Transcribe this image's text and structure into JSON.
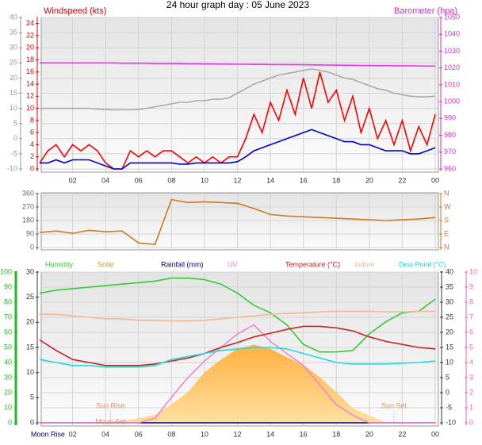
{
  "chart_data": [
    {
      "type": "line",
      "title": "24 hour graph day : 05 June 2023",
      "y_label": "Windspeed (kts)",
      "y2_label": "Barometer (hpa)",
      "xlim": [
        0,
        24
      ],
      "xticks": [
        {
          "value": 2,
          "label": "02"
        },
        {
          "value": 4,
          "label": "04"
        },
        {
          "value": 6,
          "label": "06"
        },
        {
          "value": 8,
          "label": "08"
        },
        {
          "value": 10,
          "label": "10"
        },
        12,
        14,
        16,
        18,
        20,
        22,
        {
          "value": 24,
          "label": "00"
        }
      ],
      "x": [
        0,
        0.5,
        1,
        1.5,
        2,
        2.5,
        3,
        3.5,
        4,
        4.5,
        5,
        5.5,
        6,
        6.5,
        7,
        7.5,
        8,
        8.5,
        9,
        9.5,
        10,
        10.5,
        11,
        11.5,
        12,
        12.5,
        13,
        13.5,
        14,
        14.5,
        15,
        15.5,
        16,
        16.5,
        17,
        17.5,
        18,
        18.5,
        19,
        19.5,
        20,
        20.5,
        21,
        21.5,
        22,
        22.5,
        23,
        23.5,
        24
      ],
      "ylim": [
        0,
        25
      ],
      "yticks": [
        24,
        22,
        20,
        18,
        16,
        14,
        12,
        10,
        8,
        6,
        4,
        2,
        0
      ],
      "y2lim": [
        960,
        1050
      ],
      "y2ticks": [
        1050,
        1040,
        1030,
        1020,
        1010,
        1000,
        990,
        980,
        970,
        960
      ],
      "y3lim": [
        -10,
        40
      ],
      "y3ticks": [
        40,
        35,
        30,
        25,
        20,
        15,
        10,
        5,
        0,
        -5,
        -10
      ],
      "axis_colors": {
        "y": "#dd0000",
        "y2": "#cc33cc",
        "y3": "#999999"
      },
      "grid": "y3",
      "series": [
        {
          "color": "#aaaaaa",
          "axis": "y3",
          "values": [
            10,
            10,
            10,
            10,
            10,
            10,
            10,
            9.8,
            9.6,
            9.5,
            9.5,
            9.5,
            9.6,
            10,
            10.5,
            11,
            11.5,
            12,
            12,
            12.5,
            12.5,
            13,
            13,
            13.5,
            15,
            16.5,
            18,
            19,
            20,
            21,
            21.5,
            22,
            22.5,
            23,
            22.5,
            22,
            21,
            20,
            19.5,
            18.5,
            17.5,
            16.5,
            16,
            15,
            14.5,
            14,
            13.8,
            13.8,
            14
          ]
        },
        {
          "color": "#ee33ee",
          "axis": "y2",
          "values": [
            1023,
            1023,
            1023,
            1023,
            1023,
            1023,
            1023,
            1023,
            1023,
            1023,
            1022.8,
            1022.8,
            1022.8,
            1022.8,
            1022.6,
            1022.6,
            1022.6,
            1022.6,
            1022.5,
            1022.5,
            1022.4,
            1022.4,
            1022.3,
            1022.3,
            1022.2,
            1022.2,
            1022.1,
            1022.1,
            1022,
            1022,
            1022,
            1021.9,
            1021.9,
            1021.8,
            1021.8,
            1021.7,
            1021.7,
            1021.6,
            1021.6,
            1021.5,
            1021.5,
            1021.4,
            1021.4,
            1021.3,
            1021.3,
            1021.2,
            1021.2,
            1021.1,
            1021.1
          ]
        },
        {
          "color": "#ff0000",
          "axis": "y",
          "values": [
            1,
            3,
            4,
            2,
            4,
            3,
            4,
            3,
            1,
            0,
            0,
            3,
            2,
            3,
            2,
            3,
            3,
            2,
            1,
            2,
            1,
            2,
            1,
            2,
            2,
            5,
            9,
            6,
            11,
            8,
            13,
            9,
            15,
            10,
            16,
            11,
            13,
            8,
            12,
            6,
            10,
            5,
            8,
            4,
            8,
            3,
            7,
            4,
            9
          ]
        },
        {
          "color": "#0000cc",
          "axis": "y",
          "values": [
            1,
            1,
            1.5,
            1,
            1.5,
            1.5,
            1.5,
            1,
            0.5,
            0,
            0,
            1,
            1,
            1,
            1,
            1,
            1,
            0.8,
            0.8,
            1,
            1,
            1,
            1,
            1,
            1.2,
            2,
            3,
            3.5,
            4,
            4.5,
            5,
            5.5,
            6,
            6.5,
            6,
            5.5,
            5,
            4.5,
            4.5,
            4,
            4,
            3.5,
            3,
            3,
            3,
            2.5,
            2.5,
            3,
            3.5
          ]
        }
      ]
    },
    {
      "type": "line",
      "xlim": [
        0,
        24
      ],
      "x": [
        0,
        1,
        2,
        3,
        4,
        5,
        6,
        7,
        8,
        9,
        10,
        11,
        12,
        13,
        14,
        15,
        16,
        17,
        18,
        19,
        20,
        21,
        22,
        23,
        24
      ],
      "ylim": [
        0,
        360
      ],
      "yticks": [
        360,
        270,
        180,
        90,
        0
      ],
      "y2lim": [
        0,
        360
      ],
      "y2ticks": [
        {
          "value": 360,
          "label": "N"
        },
        {
          "value": 270,
          "label": "W"
        },
        {
          "value": 180,
          "label": "S"
        },
        {
          "value": 90,
          "label": "E"
        },
        {
          "value": 0,
          "label": "N"
        }
      ],
      "axis_colors": {
        "y": "#666666",
        "y2": "#cc7a20"
      },
      "grid": "y",
      "series": [
        {
          "color": "#d07a20",
          "axis": "y",
          "values": [
            100,
            110,
            95,
            115,
            105,
            110,
            30,
            20,
            320,
            300,
            305,
            300,
            295,
            260,
            220,
            210,
            205,
            200,
            195,
            190,
            185,
            180,
            185,
            190,
            200
          ]
        }
      ]
    },
    {
      "type": "line",
      "xlim": [
        0,
        24
      ],
      "xticks": [
        {
          "value": 2,
          "label": "02"
        },
        {
          "value": 4,
          "label": "04"
        },
        {
          "value": 6,
          "label": "06"
        },
        {
          "value": 8,
          "label": "08"
        },
        {
          "value": 10,
          "label": "10"
        },
        12,
        14,
        16,
        18,
        20,
        22,
        {
          "value": 24,
          "label": "00"
        }
      ],
      "x": [
        0,
        1,
        2,
        3,
        4,
        5,
        6,
        7,
        8,
        9,
        10,
        11,
        12,
        13,
        14,
        15,
        16,
        17,
        18,
        19,
        20,
        21,
        22,
        23,
        24
      ],
      "ylim": [
        0,
        100
      ],
      "yticks": [
        100,
        90,
        80,
        70,
        60,
        50,
        40,
        30,
        20,
        10,
        0
      ],
      "y2lim": [
        -10,
        40
      ],
      "y2ticks": [
        40,
        35,
        30,
        25,
        20,
        15,
        10,
        5,
        0,
        -5,
        -10
      ],
      "y3lim": [
        0,
        30
      ],
      "y3ticks": [
        30,
        25,
        20,
        15,
        10,
        5,
        0
      ],
      "y4lim": [
        0,
        10
      ],
      "y4ticks": [
        10,
        9,
        8,
        7,
        6,
        5,
        4,
        3,
        2,
        1,
        0
      ],
      "axis_colors": {
        "y": "#22bb22",
        "y2": "#333333",
        "y3": "#333333",
        "y4": "#ee66bb"
      },
      "grid": "y2",
      "annotations": [
        {
          "text": "Sun Rise",
          "x": 4.3
        },
        {
          "text": "Moon Set",
          "x": 4.3
        },
        {
          "text": "Sun Set",
          "x": 21.5
        },
        {
          "text": "Moon Rise",
          "x": 0.5
        }
      ],
      "series": [
        {
          "name": "Humidity",
          "color": "#33cc33",
          "axis": "y",
          "values": [
            86,
            88,
            89,
            90,
            91,
            92,
            93,
            94,
            96,
            96,
            95,
            92,
            86,
            78,
            73,
            65,
            52,
            47,
            47,
            48,
            59,
            67,
            73,
            74,
            82
          ]
        },
        {
          "name": "Solar",
          "color": "#ffbb44",
          "text_color": "#b8a030",
          "axis": "y3",
          "area": true,
          "values": [
            0,
            0,
            0,
            0,
            0,
            0.3,
            0.8,
            1.5,
            3.6,
            6,
            10,
            12.5,
            14.7,
            15.5,
            14.7,
            13,
            11.5,
            9,
            6,
            2.8,
            1.3,
            0,
            0,
            0,
            0
          ]
        },
        {
          "name": "Rainfall (mm)",
          "color": "#000080",
          "axis": "y3",
          "values": [
            0,
            0,
            0,
            0,
            0,
            0,
            0,
            0,
            0,
            0,
            0,
            0,
            0,
            0,
            0,
            0,
            0,
            0,
            0,
            0,
            0,
            0,
            0,
            0,
            0
          ]
        },
        {
          "name": "UV",
          "color": "#ee88cc",
          "axis": "y4",
          "values": [
            0,
            0,
            0,
            0,
            0,
            0,
            0,
            0.3,
            1.7,
            3,
            4.1,
            5,
            5.9,
            6.5,
            5.4,
            4.6,
            3.8,
            2.5,
            1.2,
            0.5,
            0,
            0,
            0,
            0,
            0
          ]
        },
        {
          "name": "Temperature (°C)",
          "color": "#cc2222",
          "axis": "y2",
          "values": [
            17.5,
            14,
            11,
            10,
            9,
            9,
            9,
            9.5,
            10.5,
            11.5,
            13,
            15,
            16.6,
            18.5,
            19.7,
            21,
            22,
            22,
            21.5,
            20.5,
            18.5,
            17,
            16,
            15,
            14.5
          ]
        },
        {
          "name": "Indoor",
          "color": "#f4b898",
          "axis": "y2",
          "values": [
            26,
            26,
            25.5,
            25,
            24.5,
            24.5,
            24,
            24,
            23.8,
            23.8,
            24,
            24.5,
            25,
            25.5,
            26,
            26.3,
            26.5,
            26.8,
            27,
            27,
            27,
            26.8,
            26.8,
            27,
            27
          ]
        },
        {
          "name": "Dew Point (°C)",
          "color": "#22dddd",
          "axis": "y2",
          "values": [
            11,
            10,
            9,
            9,
            8.5,
            8.5,
            8.5,
            9,
            11,
            12,
            13,
            14,
            14.5,
            15,
            15,
            14.5,
            13,
            11.5,
            10,
            9.5,
            9.5,
            9.5,
            9.8,
            10,
            10.5
          ]
        }
      ]
    }
  ]
}
